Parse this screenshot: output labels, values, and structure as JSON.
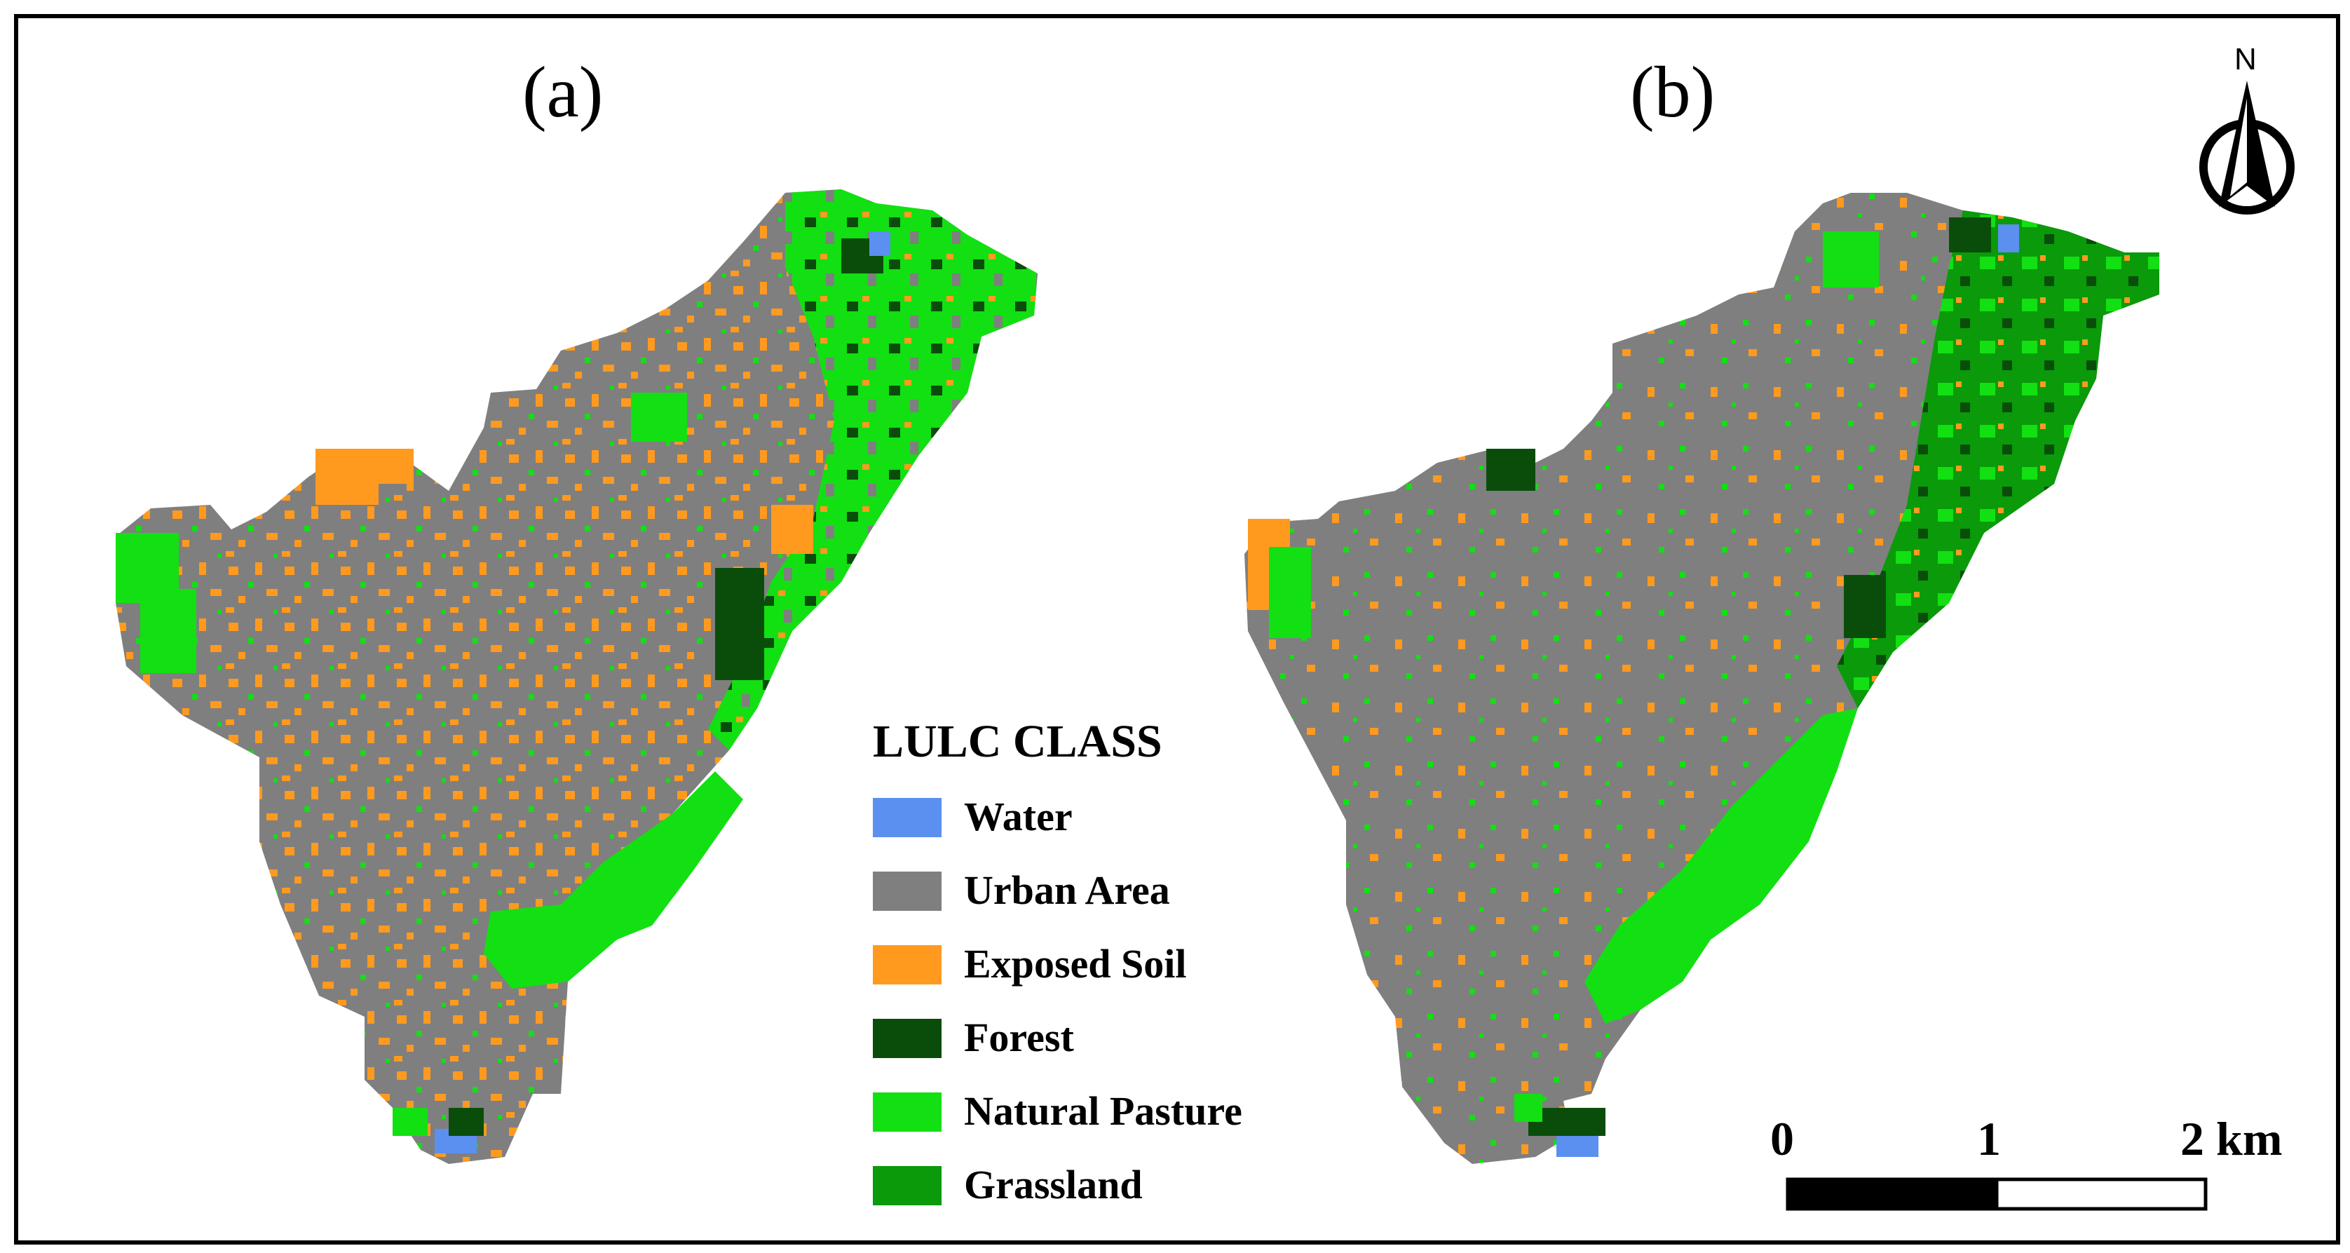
{
  "panels": [
    {
      "label": "(a)"
    },
    {
      "label": "(b)"
    }
  ],
  "north_arrow": {
    "letter": "N",
    "icon": "north-arrow-icon"
  },
  "legend": {
    "title": "LULC CLASS",
    "items": [
      {
        "label": "Water",
        "color": "#5b8ff0"
      },
      {
        "label": "Urban Area",
        "color": "#7f7f7f"
      },
      {
        "label": "Exposed Soil",
        "color": "#ff9a1f"
      },
      {
        "label": "Forest",
        "color": "#0a4d0a"
      },
      {
        "label": "Natural Pasture",
        "color": "#12e012"
      },
      {
        "label": "Grassland",
        "color": "#0a9a0a"
      }
    ]
  },
  "scale_bar": {
    "ticks": [
      "0",
      "1",
      "2 km"
    ]
  }
}
